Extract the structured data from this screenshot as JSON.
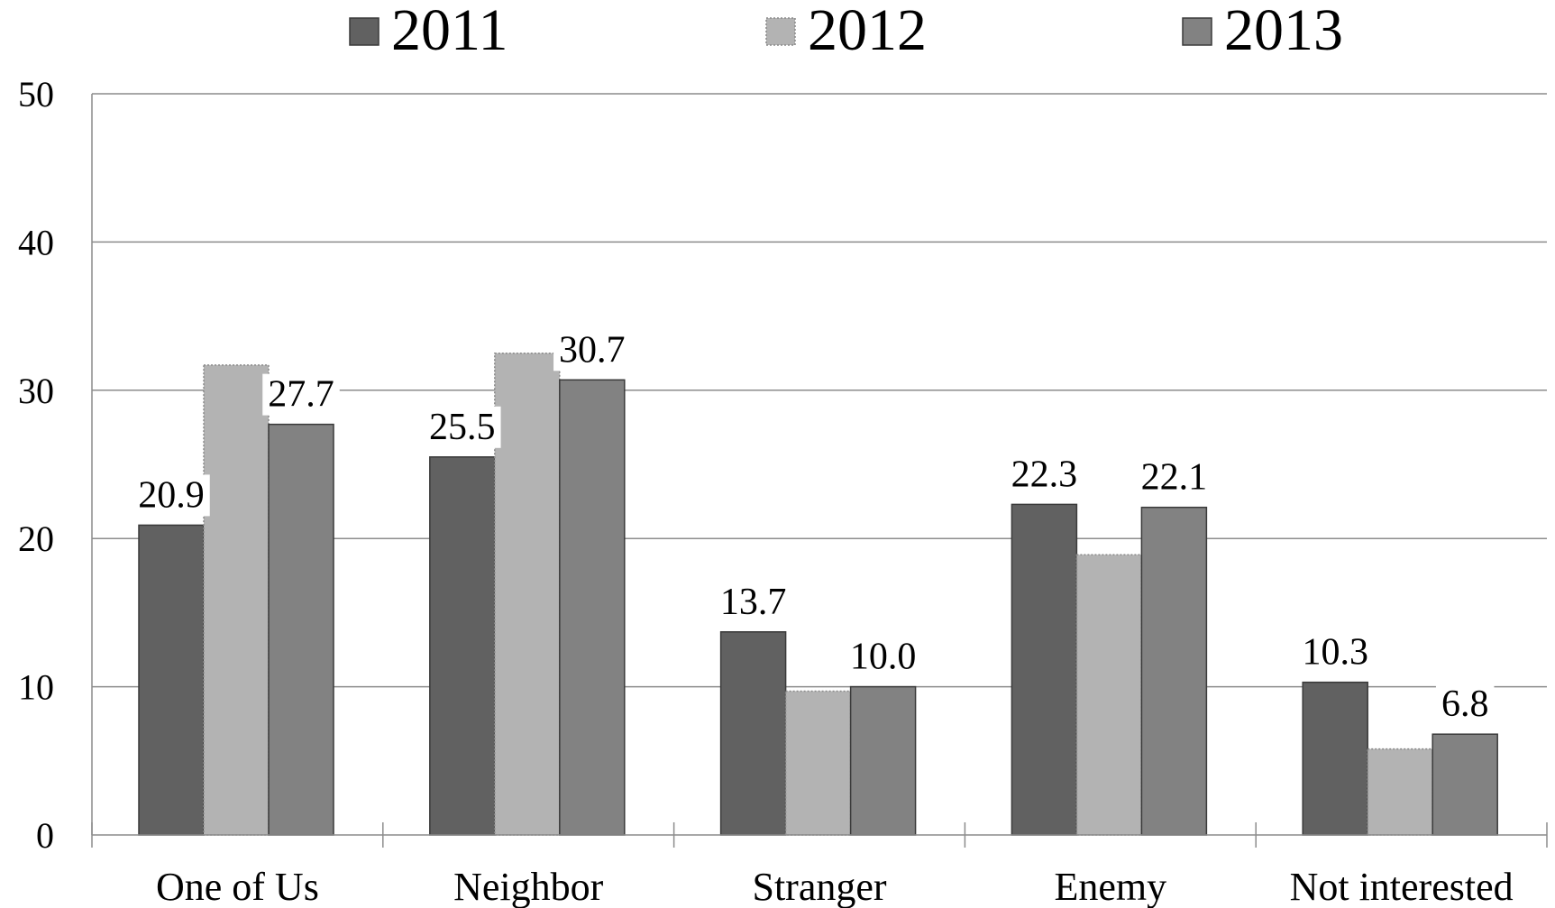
{
  "chart_data": {
    "type": "bar",
    "title": "",
    "xlabel": "",
    "ylabel": "",
    "categories": [
      "One of Us",
      "Neighbor",
      "Stranger",
      "Enemy",
      "Not interested"
    ],
    "series": [
      {
        "name": "2011",
        "color": "#616161",
        "values": [
          20.9,
          25.5,
          13.7,
          22.3,
          10.3
        ],
        "labels": [
          "20.9",
          "25.5",
          "13.7",
          "22.3",
          "10.3"
        ]
      },
      {
        "name": "2012",
        "color": "#b3b3b3",
        "values": [
          31.7,
          32.5,
          9.7,
          18.9,
          5.8
        ],
        "labels": [
          "",
          "",
          "",
          "",
          ""
        ]
      },
      {
        "name": "2013",
        "color": "#828282",
        "values": [
          27.7,
          30.7,
          10.0,
          22.1,
          6.8
        ],
        "labels": [
          "27.7",
          "30.7",
          "10.0",
          "22.1",
          "6.8"
        ]
      }
    ],
    "ylim": [
      0,
      50
    ],
    "yticks": [
      0,
      10,
      20,
      30,
      40,
      50
    ],
    "grid": true,
    "legend": "top"
  }
}
